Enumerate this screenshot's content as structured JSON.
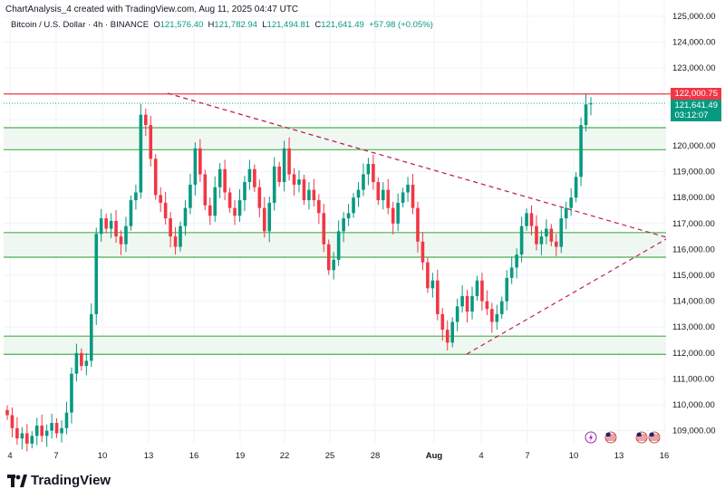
{
  "caption": "ChartAnalysis_4 created with TradingView.com, Aug 11, 2025 04:47 UTC",
  "legend": {
    "symbol": "Bitcoin / U.S. Dollar · 4h · BINANCE",
    "o_key": "O",
    "o": "121,576.40",
    "h_key": "H",
    "h": "121,782.94",
    "l_key": "L",
    "l": "121,494.81",
    "c_key": "C",
    "c": "121,641.49",
    "change": "+57.98 (+0.05%)"
  },
  "brand": "TradingView",
  "price_tags": {
    "resistance": "122,000.75",
    "last": "121,641.49",
    "countdown": "03:12:07"
  },
  "colors": {
    "up": "#089981",
    "down": "#f23645",
    "level": "#4caf50",
    "trend": "#c2185b",
    "resistance": "#f23645",
    "band": "#e8f5e9"
  },
  "chart_data": {
    "type": "candlestick",
    "y_ticks": [
      "125,000.00",
      "124,000.00",
      "123,000.00",
      "122,000.00",
      "121,000.00",
      "120,000.00",
      "119,000.00",
      "118,000.00",
      "117,000.00",
      "116,000.00",
      "115,000.00",
      "114,000.00",
      "113,000.00",
      "112,000.00",
      "111,000.00",
      "110,000.00",
      "109,000.00"
    ],
    "y_values": [
      125000,
      124000,
      123000,
      122000,
      121000,
      120000,
      119000,
      118000,
      117000,
      116000,
      115000,
      114000,
      113000,
      112000,
      111000,
      110000,
      109000
    ],
    "x_ticks": [
      "4",
      "7",
      "10",
      "13",
      "16",
      "19",
      "22",
      "25",
      "28",
      "Aug",
      "4",
      "7",
      "10",
      "13",
      "16"
    ],
    "horizontal_levels": [
      120700,
      119850,
      116650,
      115700,
      112650,
      111950
    ],
    "resistance_level": 122000.75,
    "last_price": 121641.49,
    "closes": [
      109600,
      109100,
      108700,
      108900,
      108500,
      108800,
      109200,
      108800,
      109000,
      109300,
      108900,
      109100,
      109700,
      111200,
      112000,
      111500,
      111700,
      113500,
      116600,
      117200,
      116800,
      117100,
      116500,
      116200,
      116900,
      117900,
      118200,
      121200,
      120800,
      119500,
      118100,
      117800,
      117200,
      116500,
      116100,
      116900,
      117600,
      118500,
      119900,
      118900,
      117700,
      117300,
      118400,
      119100,
      118200,
      117600,
      117300,
      117900,
      118600,
      119100,
      118400,
      117600,
      116700,
      117800,
      119200,
      118600,
      119900,
      118900,
      118500,
      118700,
      117900,
      118300,
      117900,
      117400,
      116200,
      115200,
      115600,
      116700,
      117200,
      117400,
      118000,
      118300,
      118900,
      119300,
      118600,
      117900,
      118300,
      117600,
      117000,
      117800,
      118200,
      118500,
      117600,
      116300,
      115500,
      114500,
      114800,
      113500,
      112900,
      112400,
      113200,
      113800,
      114200,
      113600,
      114200,
      114800,
      114000,
      113700,
      113200,
      113500,
      114000,
      114900,
      115300,
      115800,
      116900,
      117400,
      116900,
      116200,
      116500,
      116800,
      116300,
      116100,
      117200,
      117600,
      118000,
      118800,
      120800,
      121600,
      121641
    ]
  },
  "icons": [
    "lightning-icon",
    "flag-us-icon",
    "flag-us-icon",
    "flag-us-icon"
  ]
}
